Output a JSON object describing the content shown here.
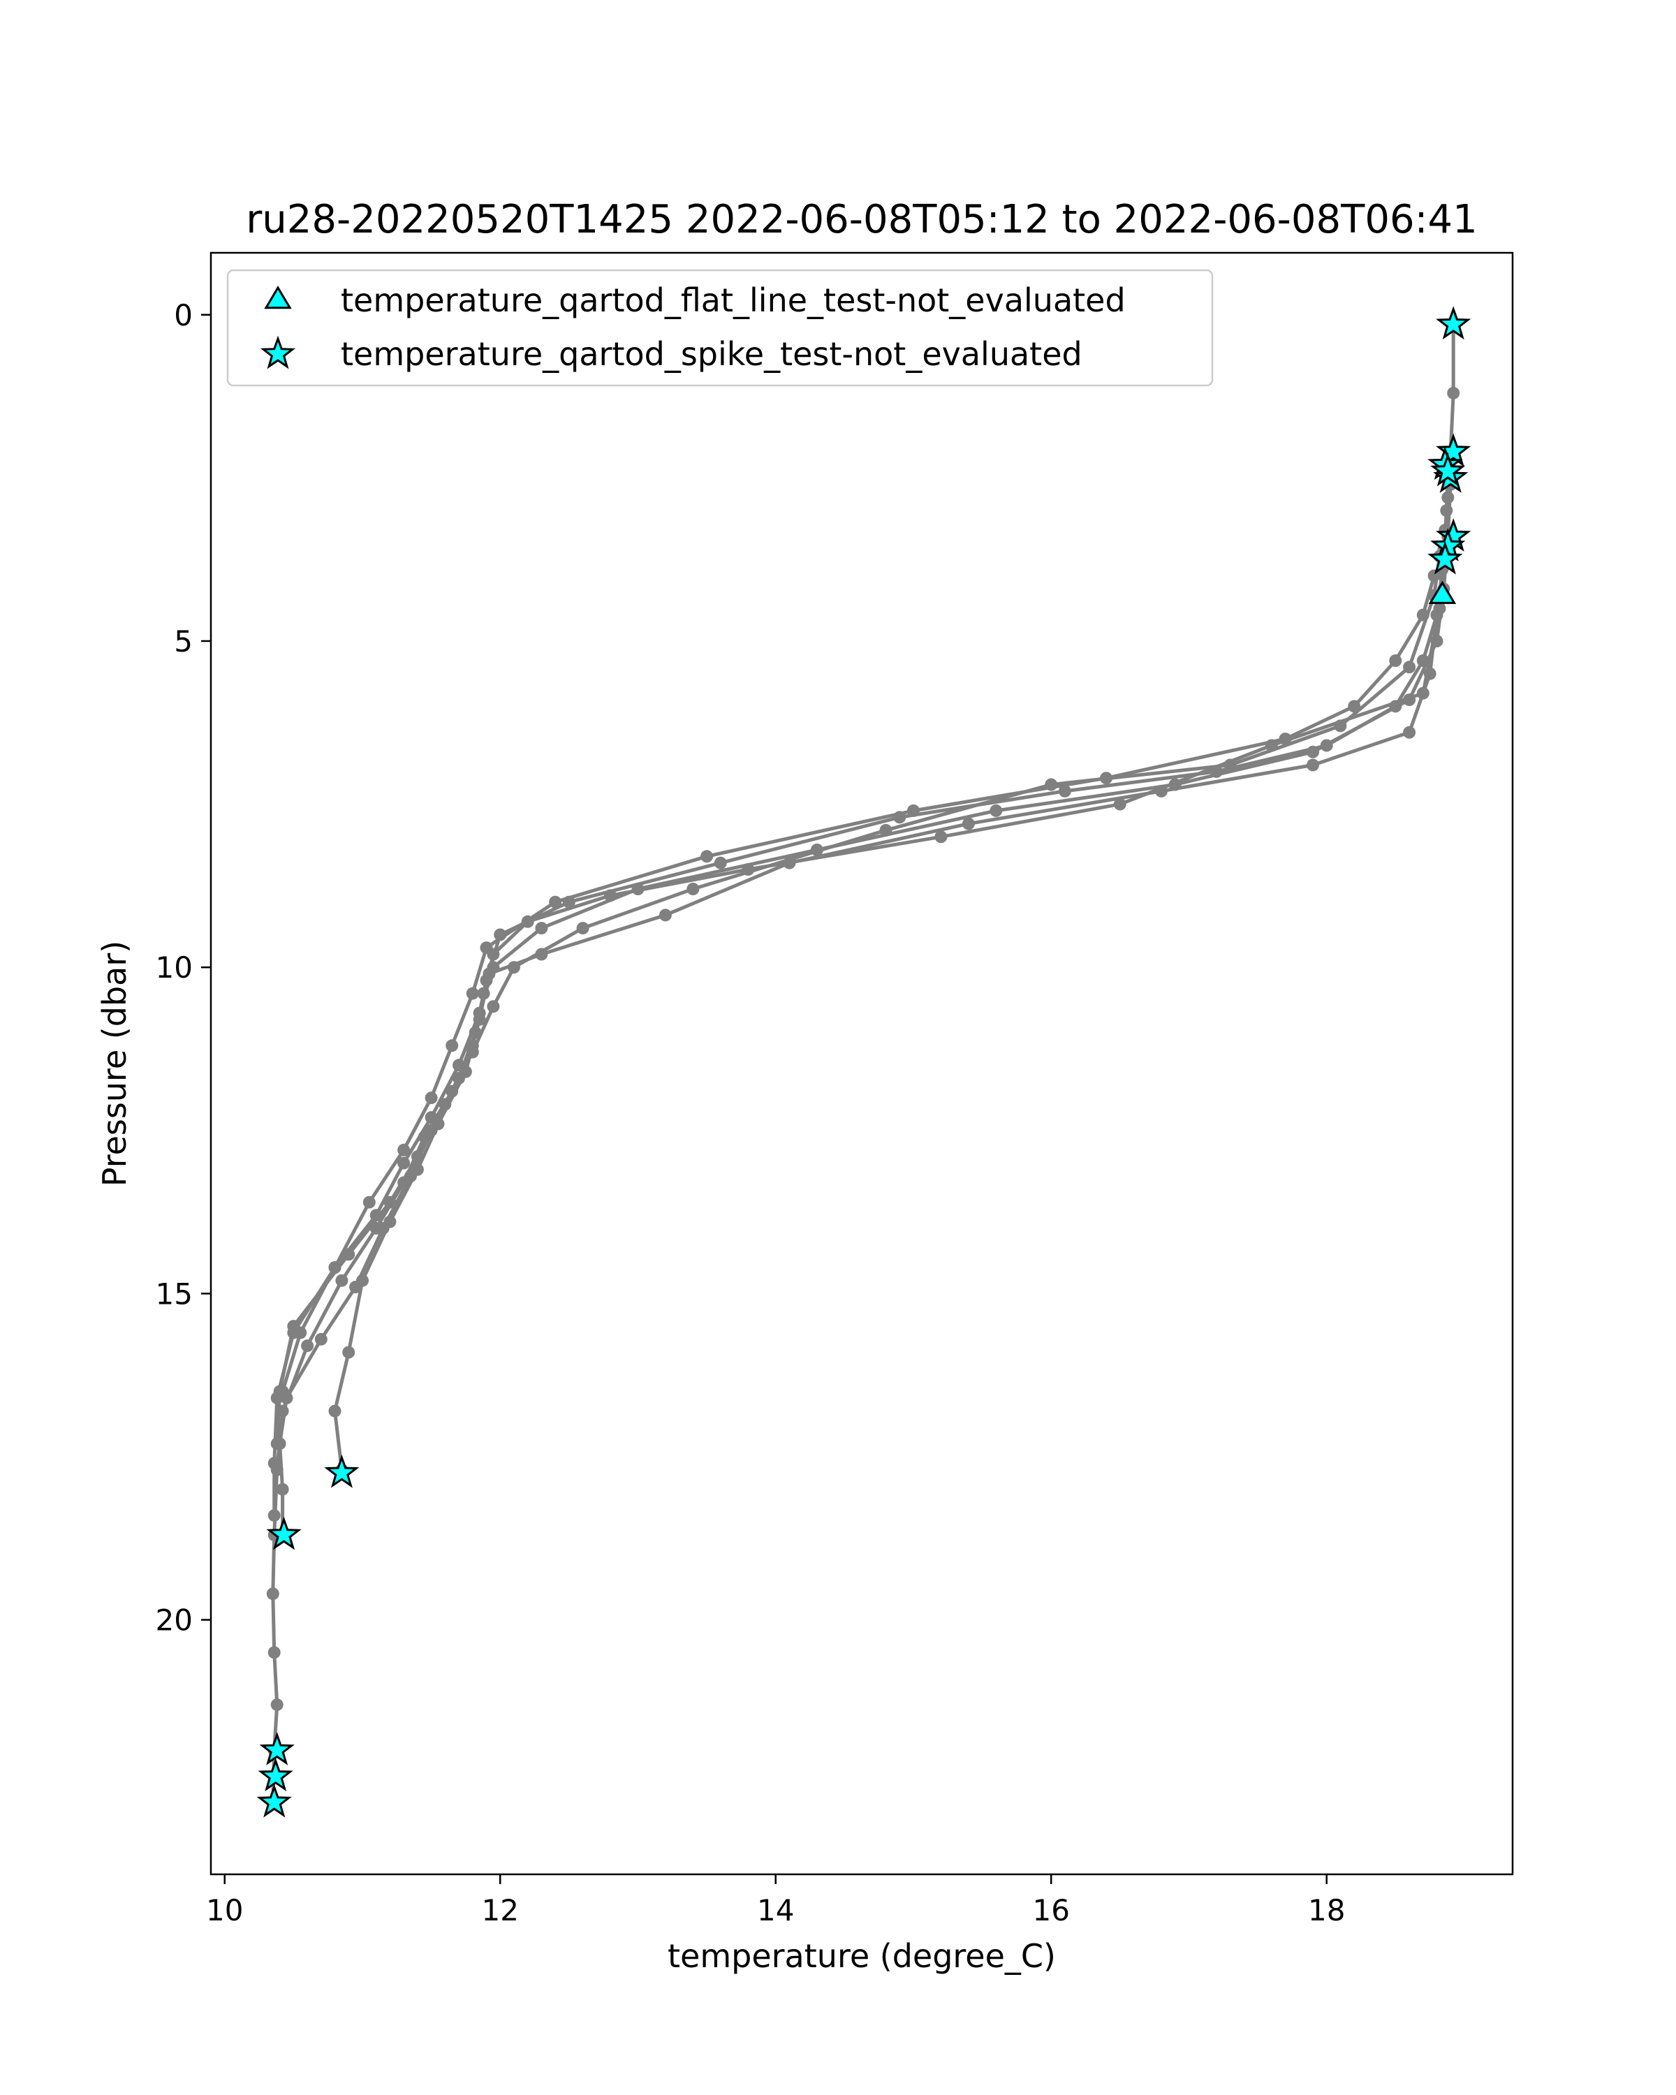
{
  "chart_data": {
    "type": "line",
    "title": "ru28-20220520T1425 2022-06-08T05:12 to 2022-06-08T06:41",
    "xlabel": "temperature (degree_C)",
    "ylabel": "Pressure (dbar)",
    "xlim": [
      9.9,
      19.35
    ],
    "ylim": [
      23.9,
      -0.95
    ],
    "y_inverted": true,
    "grid": false,
    "legend_position": "upper-left",
    "colors": {
      "profile_line": "#808080",
      "marker_fill": "#00ffff",
      "marker_edge": "#000000"
    },
    "xticks": [
      {
        "value": 10,
        "label": "10"
      },
      {
        "value": 12,
        "label": "12"
      },
      {
        "value": 14,
        "label": "14"
      },
      {
        "value": 16,
        "label": "16"
      },
      {
        "value": 18,
        "label": "18"
      }
    ],
    "yticks": [
      {
        "value": 0,
        "label": "0"
      },
      {
        "value": 5,
        "label": "5"
      },
      {
        "value": 10,
        "label": "10"
      },
      {
        "value": 15,
        "label": "15"
      },
      {
        "value": 20,
        "label": "20"
      }
    ],
    "profiles": [
      {
        "x": [
          18.92,
          18.92,
          18.9,
          18.88,
          18.85,
          18.82,
          18.7,
          17.6,
          16.5,
          15.2,
          13.8,
          12.8,
          12.2,
          11.95,
          11.88,
          11.8,
          11.65,
          11.45,
          11.3,
          11.1,
          10.85,
          10.6,
          10.42,
          10.38,
          10.36,
          10.35,
          10.36,
          10.38,
          10.36,
          10.35
        ],
        "y": [
          0.15,
          1.2,
          2.1,
          2.8,
          3.6,
          4.5,
          5.8,
          6.6,
          7.5,
          8.0,
          8.5,
          8.9,
          9.3,
          9.8,
          10.4,
          11.2,
          11.9,
          12.6,
          13.3,
          14.0,
          14.8,
          15.8,
          16.8,
          17.7,
          18.7,
          19.6,
          20.5,
          21.3,
          22.0,
          22.8
        ]
      },
      {
        "x": [
          18.88,
          18.87,
          18.85,
          18.8,
          18.75,
          18.6,
          17.9,
          16.8,
          15.4,
          14.1,
          13.2,
          12.3,
          11.92,
          11.85,
          11.75,
          11.55,
          11.4,
          11.2,
          11.0,
          10.9,
          10.8,
          10.85
        ],
        "y": [
          2.4,
          3.0,
          3.8,
          4.6,
          5.5,
          6.4,
          6.9,
          7.3,
          7.8,
          8.4,
          9.2,
          9.8,
          10.1,
          10.8,
          11.6,
          12.4,
          13.1,
          13.9,
          14.8,
          15.9,
          16.8,
          17.7
        ]
      },
      {
        "x": [
          18.86,
          18.84,
          18.8,
          18.7,
          18.5,
          18.0,
          17.2,
          16.1,
          14.9,
          13.6,
          12.5,
          12.0,
          11.9,
          11.82,
          11.7,
          11.5,
          11.35,
          11.15,
          10.95,
          10.7,
          10.45,
          10.4,
          10.42,
          10.42
        ],
        "y": [
          3.3,
          3.9,
          4.6,
          5.3,
          6.0,
          6.6,
          7.0,
          7.3,
          7.7,
          8.4,
          9.0,
          9.5,
          10.2,
          11.0,
          11.7,
          12.5,
          13.2,
          14.0,
          14.9,
          15.7,
          16.6,
          17.3,
          18.0,
          18.7
        ]
      },
      {
        "x": [
          18.82,
          18.78,
          18.6,
          18.1,
          17.3,
          16.0,
          14.8,
          13.4,
          12.6,
          12.1,
          11.95,
          11.8,
          11.6,
          11.4,
          11.2,
          10.9,
          10.5,
          10.4,
          10.38
        ],
        "y": [
          3.7,
          4.3,
          5.4,
          6.3,
          6.9,
          7.2,
          7.9,
          8.8,
          9.4,
          10.0,
          10.6,
          11.3,
          12.1,
          12.9,
          13.6,
          14.4,
          15.5,
          16.5,
          17.3
        ]
      },
      {
        "x": [
          18.78,
          18.7,
          18.5,
          18.2,
          17.7,
          16.4,
          15.0,
          13.5,
          12.4,
          11.9,
          11.8,
          11.65,
          11.5,
          11.3,
          11.05,
          10.8,
          10.55,
          10.42
        ],
        "y": [
          4.0,
          4.6,
          5.3,
          6.0,
          6.5,
          7.1,
          7.6,
          8.3,
          9.0,
          9.7,
          10.4,
          11.2,
          12.0,
          12.8,
          13.6,
          14.6,
          15.6,
          16.5
        ]
      },
      {
        "x": [
          18.9,
          18.88,
          18.85,
          18.8,
          18.6,
          17.9,
          16.9,
          15.6,
          14.3,
          13.0,
          12.3,
          11.95,
          11.85,
          11.7,
          11.5,
          11.3,
          11.1,
          10.8,
          10.5,
          10.38,
          10.36,
          10.36
        ],
        "y": [
          2.6,
          3.4,
          4.2,
          5.0,
          5.9,
          6.7,
          7.2,
          7.6,
          8.2,
          8.8,
          9.4,
          10.0,
          10.7,
          11.5,
          12.3,
          13.0,
          13.8,
          14.6,
          15.6,
          16.6,
          17.6,
          18.4
        ]
      }
    ],
    "flagged_points": [
      {
        "series": "temperature_qartod_spike_test-not_evaluated",
        "x": 18.92,
        "y": 0.15
      },
      {
        "series": "temperature_qartod_spike_test-not_evaluated",
        "x": 18.92,
        "y": 2.1
      },
      {
        "series": "temperature_qartod_spike_test-not_evaluated",
        "x": 18.86,
        "y": 2.3
      },
      {
        "series": "temperature_qartod_spike_test-not_evaluated",
        "x": 18.9,
        "y": 2.5
      },
      {
        "series": "temperature_qartod_spike_test-not_evaluated",
        "x": 18.88,
        "y": 2.4
      },
      {
        "series": "temperature_qartod_spike_test-not_evaluated",
        "x": 18.92,
        "y": 3.4
      },
      {
        "series": "temperature_qartod_spike_test-not_evaluated",
        "x": 18.88,
        "y": 3.55
      },
      {
        "series": "temperature_qartod_spike_test-not_evaluated",
        "x": 18.86,
        "y": 3.75
      },
      {
        "series": "temperature_qartod_flat_line_test-not_evaluated",
        "x": 18.84,
        "y": 4.3
      },
      {
        "series": "temperature_qartod_spike_test-not_evaluated",
        "x": 10.85,
        "y": 17.75
      },
      {
        "series": "temperature_qartod_spike_test-not_evaluated",
        "x": 10.43,
        "y": 18.7
      },
      {
        "series": "temperature_qartod_spike_test-not_evaluated",
        "x": 10.38,
        "y": 22.0
      },
      {
        "series": "temperature_qartod_spike_test-not_evaluated",
        "x": 10.37,
        "y": 22.4
      },
      {
        "series": "temperature_qartod_spike_test-not_evaluated",
        "x": 10.36,
        "y": 22.8
      }
    ],
    "legend": [
      {
        "name": "temperature_qartod_flat_line_test-not_evaluated",
        "marker": "triangle"
      },
      {
        "name": "temperature_qartod_spike_test-not_evaluated",
        "marker": "star"
      }
    ]
  }
}
